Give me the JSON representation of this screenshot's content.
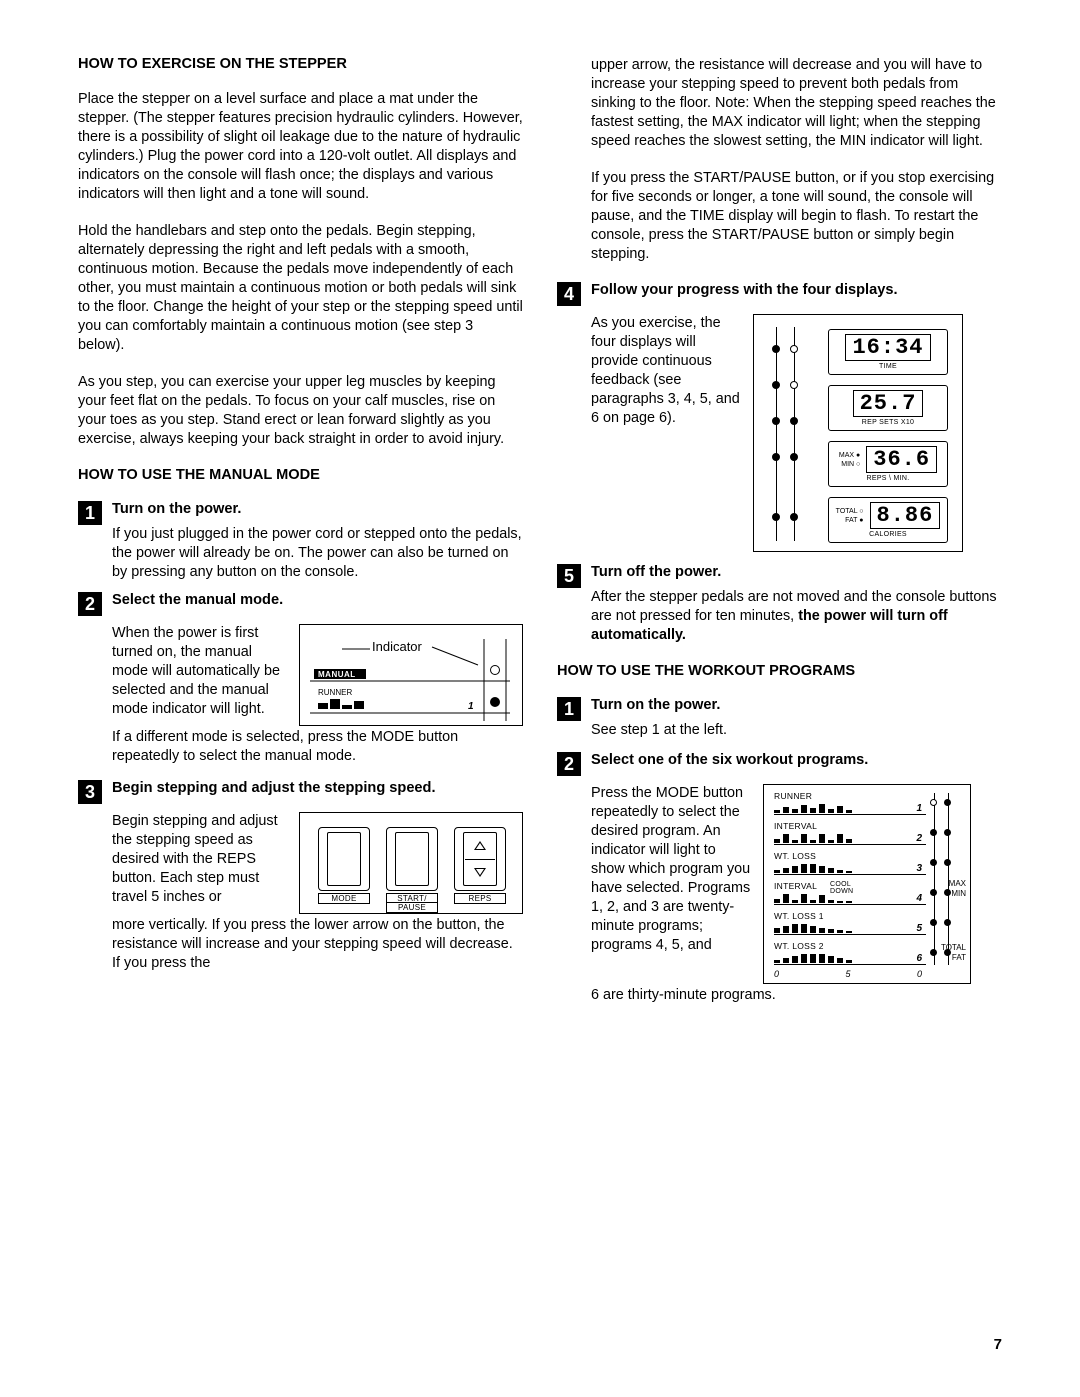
{
  "page_number": "7",
  "left": {
    "h1": "HOW TO EXERCISE ON THE STEPPER",
    "p1": "Place the stepper on a level surface and place a mat under the stepper. (The stepper features precision hydraulic cylinders. However, there is a possibility of slight oil leakage due to the nature of hydraulic cylinders.) Plug the power cord into a 120-volt outlet. All displays and indicators on the console will flash once; the displays and various indicators will then light and a tone will sound.",
    "p2": "Hold the handlebars and step onto the pedals. Begin stepping, alternately depressing the right and left pedals with a smooth, continuous motion. Because the pedals move independently of each other, you must maintain a continuous motion or both pedals will sink to the floor. Change the height of your step or the stepping speed until you can comfortably maintain a continuous motion (see step 3 below).",
    "p3": "As you step, you can exercise your upper leg muscles by keeping your feet flat on the pedals. To focus on your calf muscles, rise on your toes as you step. Stand erect or lean forward slightly as you exercise, always keeping your back straight in order to avoid injury.",
    "h2": "HOW TO USE THE MANUAL MODE",
    "s1_title": "Turn on the power.",
    "s1_text": "If you just plugged in the power cord or stepped onto the pedals, the power will already be on. The power can also be turned on by pressing any button on the console.",
    "s2_title": "Select the manual mode.",
    "s2_text_a": "When the power is first turned on, the manual mode will automatically be selected and the manual mode indicator will light.",
    "s2_text_b": "If a different mode is selected, press the MODE button repeatedly to select the manual mode.",
    "s3_title": "Begin stepping and adjust the stepping speed.",
    "s3_text_a": "Begin stepping and adjust the stepping speed as desired with the REPS button. Each step must travel 5 inches or",
    "s3_text_b": "more vertically. If you press the lower arrow on the button, the resistance will increase and your stepping speed will decrease. If you press the",
    "ind_label": "Indicator",
    "ind_manual": "MANUAL",
    "ind_runner": "RUNNER",
    "ind_one": "1",
    "btn_mode": "MODE",
    "btn_start": "START/",
    "btn_pause": "PAUSE",
    "btn_reps": "REPS"
  },
  "right": {
    "p1": "upper arrow, the resistance will decrease and you will have to increase your stepping speed to prevent both pedals from sinking to the floor. Note: When the stepping speed reaches the fastest setting, the MAX indicator will light; when the stepping speed reaches the slowest setting, the MIN indicator will light.",
    "p2": "If you press the START/PAUSE button, or if you stop exercising for five seconds or longer, a tone will sound, the console will pause, and the TIME display will begin to flash. To restart the console, press the START/PAUSE button or simply begin stepping.",
    "s4_title": "Follow your progress with the four displays.",
    "s4_text": "As you exercise, the four displays will provide continuous feedback (see paragraphs 3, 4, 5, and 6 on page 6).",
    "disp_time_v": "16:34",
    "disp_time_l": "TIME",
    "disp_rep_v": "25.7",
    "disp_rep_l": "REP SETS X10",
    "disp_rpm_v": "36.6",
    "disp_rpm_l": "REPS \\ MIN.",
    "disp_max": "MAX",
    "disp_min": "MIN",
    "disp_cal_v": "8.86",
    "disp_cal_l": "CALORIES",
    "disp_total": "TOTAL",
    "disp_fat": "FAT",
    "s5_title": "Turn off the power.",
    "s5_text_a": "After the stepper pedals are not moved and the console buttons are not pressed for ten minutes, ",
    "s5_text_b": "the power will turn off automatically.",
    "h3": "HOW TO USE THE WORKOUT PROGRAMS",
    "w1_title": "Turn on the power.",
    "w1_text": "See step 1 at the left.",
    "w2_title": "Select one of the six workout programs.",
    "w2_text_a": "Press the MODE button repeatedly to select the desired program. An indicator will light to show which program you have selected. Programs 1, 2, and 3 are twenty-minute programs; programs 4, 5, and",
    "w2_text_b": "6 are thirty-minute programs.",
    "prog": {
      "rows": [
        {
          "name": "RUNNER",
          "num": "1"
        },
        {
          "name": "INTERVAL",
          "num": "2"
        },
        {
          "name": "WT. LOSS",
          "num": "3"
        },
        {
          "name": "INTERVAL",
          "extra": "COOL\nDOWN",
          "num": "4"
        },
        {
          "name": "WT. LOSS 1",
          "num": "5"
        },
        {
          "name": "WT. LOSS 2",
          "num": "6"
        }
      ],
      "xticks": [
        "0",
        "5",
        "0"
      ],
      "max": "MAX",
      "min": "MIN",
      "total": "TOTAL",
      "fat": "FAT"
    }
  }
}
